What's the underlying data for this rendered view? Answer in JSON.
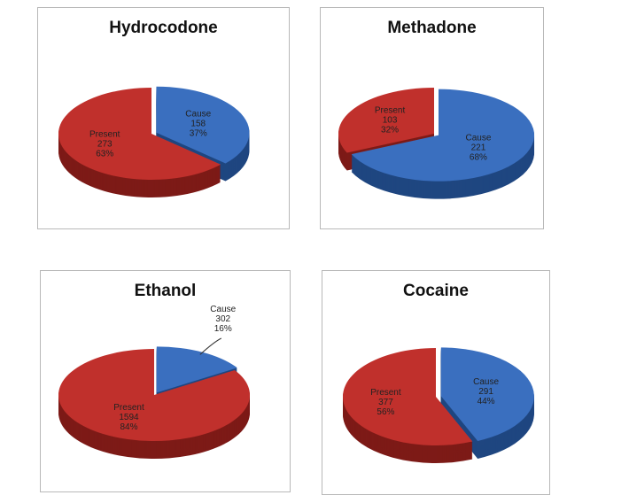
{
  "colors": {
    "cause": "#3a6fbf",
    "cause_side": "#1f4680",
    "present": "#c0302c",
    "present_side": "#7d1a17"
  },
  "chart_data": [
    {
      "type": "pie",
      "title": "Hydrocodone",
      "slices": [
        {
          "label": "Cause",
          "value": 158,
          "percent": "37%"
        },
        {
          "label": "Present",
          "value": 273,
          "percent": "63%"
        }
      ]
    },
    {
      "type": "pie",
      "title": "Methadone",
      "slices": [
        {
          "label": "Cause",
          "value": 221,
          "percent": "68%"
        },
        {
          "label": "Present",
          "value": 103,
          "percent": "32%"
        }
      ]
    },
    {
      "type": "pie",
      "title": "Ethanol",
      "slices": [
        {
          "label": "Cause",
          "value": 302,
          "percent": "16%"
        },
        {
          "label": "Present",
          "value": 1594,
          "percent": "84%"
        }
      ]
    },
    {
      "type": "pie",
      "title": "Cocaine",
      "slices": [
        {
          "label": "Cause",
          "value": 291,
          "percent": "44%"
        },
        {
          "label": "Present",
          "value": 377,
          "percent": "56%"
        }
      ]
    }
  ]
}
